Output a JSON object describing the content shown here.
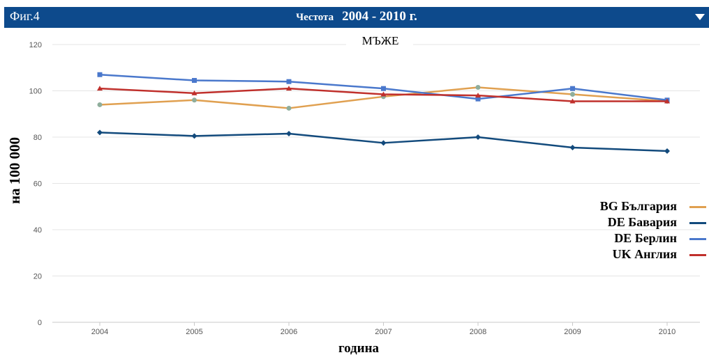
{
  "header": {
    "fig_label": "Фиг.4",
    "title_prefix": "Честота",
    "title_period": "2004 - 2010 г."
  },
  "chart_data": {
    "type": "line",
    "title": "МЪЖЕ",
    "xlabel": "година",
    "ylabel": "на 100 000",
    "categories": [
      "2004",
      "2005",
      "2006",
      "2007",
      "2008",
      "2009",
      "2010"
    ],
    "ylim": [
      0,
      120
    ],
    "yticks": [
      "0",
      "20",
      "40",
      "60",
      "80",
      "100",
      "120"
    ],
    "grid": true,
    "legend_position": "right",
    "series": [
      {
        "name": "BG България",
        "color": "#e0a050",
        "values": [
          94,
          96,
          92.5,
          97.5,
          101.5,
          98.5,
          95.5
        ]
      },
      {
        "name": "DE Бавария",
        "color": "#124a7c",
        "values": [
          82,
          80.5,
          81.5,
          77.5,
          80,
          75.5,
          74
        ]
      },
      {
        "name": "DE Берлин",
        "color": "#4a78cc",
        "values": [
          107,
          104.5,
          104,
          101,
          96.5,
          101,
          96
        ]
      },
      {
        "name": "UK Англия",
        "color": "#c0302c",
        "values": [
          101,
          99,
          101,
          98.5,
          98,
          95.5,
          95.5
        ]
      }
    ]
  }
}
